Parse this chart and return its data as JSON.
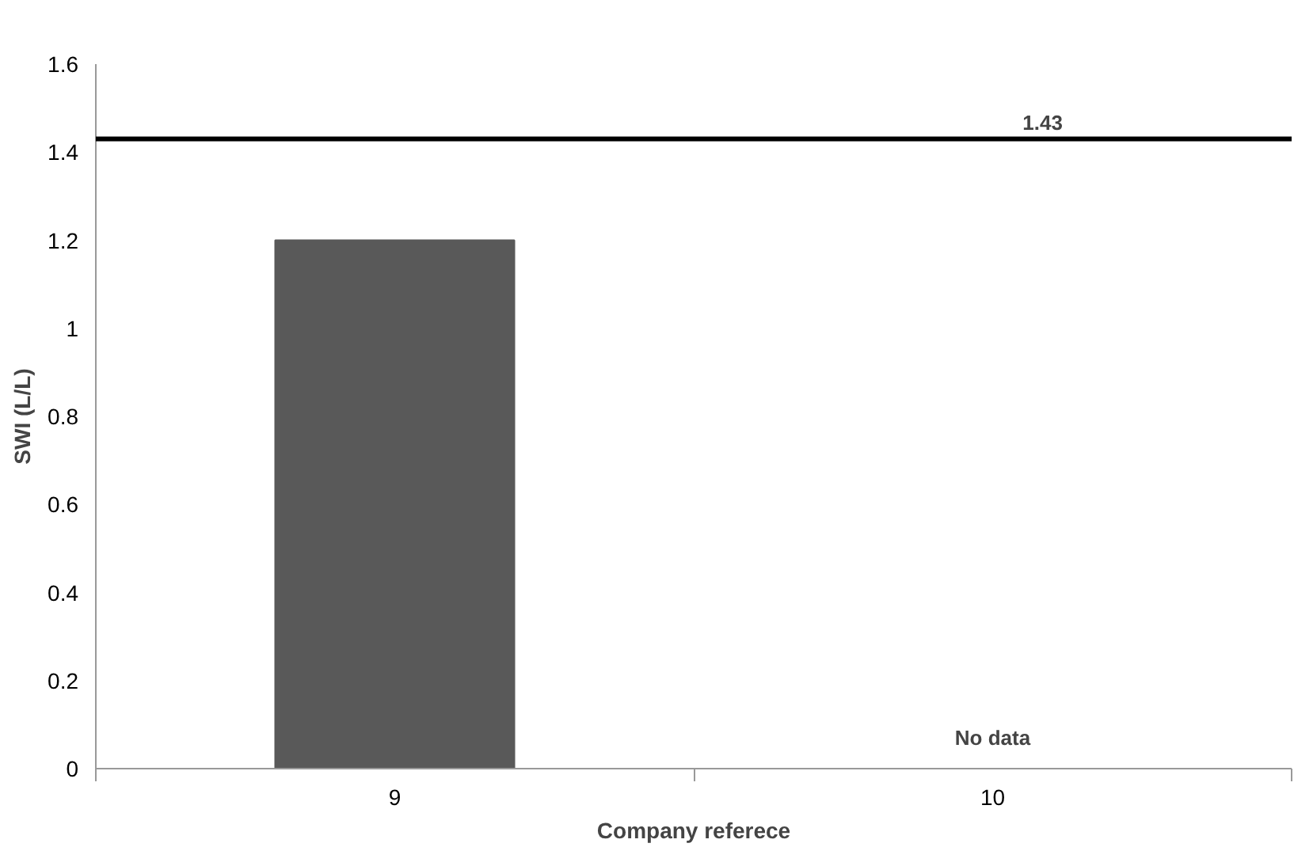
{
  "chart_data": {
    "type": "bar",
    "xlabel": "Company referece",
    "ylabel": "SWI (L/L)",
    "categories": [
      "9",
      "10"
    ],
    "values": [
      1.2,
      null
    ],
    "color": "#595959",
    "ylim": [
      0,
      1.6
    ],
    "yticks": [
      0,
      0.2,
      0.4,
      0.6,
      0.8,
      1,
      1.2,
      1.4,
      1.6
    ],
    "grid": false,
    "ref_lines": [
      {
        "axis": "y",
        "value": 1.43,
        "label": "1.43",
        "color": "#000000"
      }
    ],
    "annotations": [
      "No data"
    ]
  }
}
